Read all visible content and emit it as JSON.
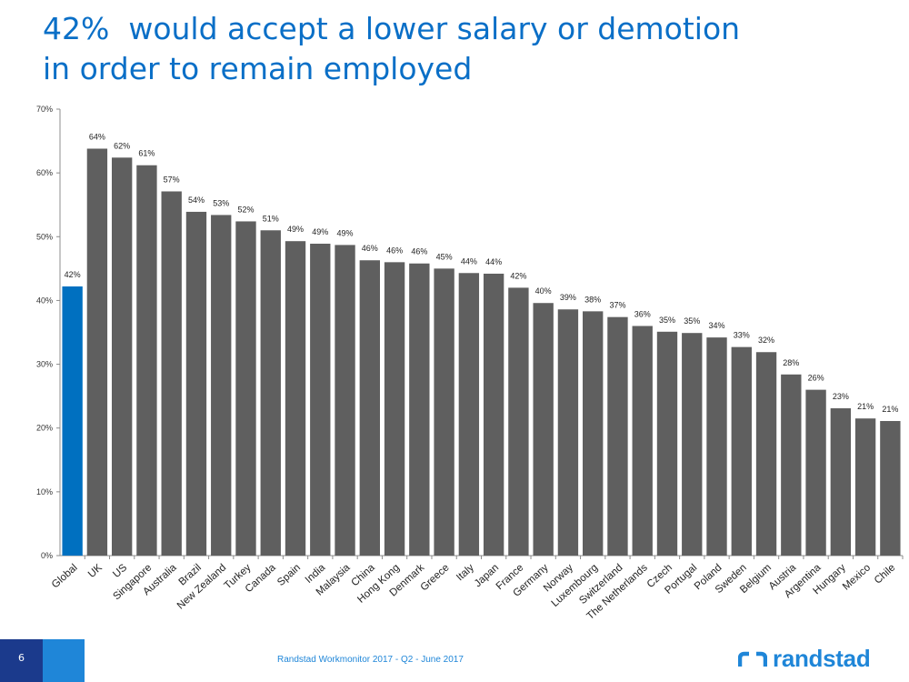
{
  "title": {
    "line1": "42%  would accept a lower salary or demotion",
    "line2": "in order to remain employed"
  },
  "footer": {
    "page_number": "6",
    "source": "Randstad Workmonitor 2017 - Q2 - June 2017",
    "logo_text": "randstad"
  },
  "colors": {
    "accent": "#0070c0",
    "bar": "#5f5f5f",
    "title": "#0a6fc7",
    "footer_dark": "#1b3a8c",
    "footer_light": "#1f86d8"
  },
  "chart_data": {
    "type": "bar",
    "categories": [
      "Global",
      "UK",
      "US",
      "Singapore",
      "Australia",
      "Brazil",
      "New Zealand",
      "Turkey",
      "Canada",
      "Spain",
      "India",
      "Malaysia",
      "China",
      "Hong Kong",
      "Denmark",
      "Greece",
      "Italy",
      "Japan",
      "France",
      "Germany",
      "Norway",
      "Luxembourg",
      "Switzerland",
      "The Netherlands",
      "Czech",
      "Portugal",
      "Poland",
      "Sweden",
      "Belgium",
      "Austria",
      "Argentina",
      "Hungary",
      "Mexico",
      "Chile"
    ],
    "values": [
      42.2,
      63.8,
      62.4,
      61.2,
      57.1,
      53.9,
      53.4,
      52.4,
      51.0,
      49.3,
      48.9,
      48.7,
      46.3,
      46.0,
      45.8,
      45.0,
      44.3,
      44.2,
      42.0,
      39.6,
      38.6,
      38.3,
      37.4,
      36.0,
      35.1,
      34.9,
      34.2,
      32.7,
      31.9,
      28.4,
      26.0,
      23.1,
      21.5,
      21.1
    ],
    "labels": [
      "42%",
      "64%",
      "62%",
      "61%",
      "57%",
      "54%",
      "53%",
      "52%",
      "51%",
      "49%",
      "49%",
      "49%",
      "46%",
      "46%",
      "46%",
      "45%",
      "44%",
      "44%",
      "42%",
      "40%",
      "39%",
      "38%",
      "37%",
      "36%",
      "35%",
      "35%",
      "34%",
      "33%",
      "32%",
      "28%",
      "26%",
      "23%",
      "21%",
      "21%"
    ],
    "highlight_category": "Global",
    "ylim": [
      0,
      70
    ],
    "yticks": [
      0,
      10,
      20,
      30,
      40,
      50,
      60,
      70
    ],
    "ytick_labels": [
      "0%",
      "10%",
      "20%",
      "30%",
      "40%",
      "50%",
      "60%",
      "70%"
    ],
    "xlabel": "",
    "ylabel": "",
    "grid": false,
    "legend": "none"
  }
}
